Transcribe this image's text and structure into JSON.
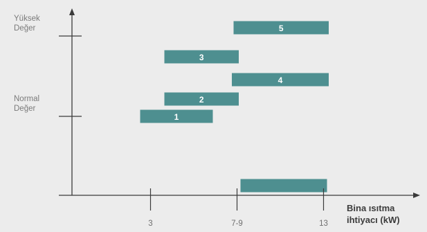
{
  "chart_data": {
    "type": "bar",
    "orientation": "horizontal",
    "xlabel": [
      "Bina ısıtma",
      "ihtiyacı (kW)"
    ],
    "x_ticks": [
      {
        "value": 3,
        "label": "3"
      },
      {
        "value": 8,
        "label": "7-9"
      },
      {
        "value": 13,
        "label": "13"
      }
    ],
    "xlim": [
      -2.3,
      18.3
    ],
    "y_labels": [
      {
        "lines": [
          "Yüksek",
          "Değer"
        ],
        "level": 1
      },
      {
        "lines": [
          "Normal",
          "Değer"
        ],
        "level": 0
      }
    ],
    "grid": false,
    "bar_color": "#4e8f90",
    "axis_color": "#3a3a3a",
    "bars": [
      {
        "label": "5",
        "x_start": 7.8,
        "x_end": 13.3,
        "row": "5"
      },
      {
        "label": "3",
        "x_start": 3.8,
        "x_end": 8.1,
        "row": "3"
      },
      {
        "label": "4",
        "x_start": 7.7,
        "x_end": 13.3,
        "row": "4"
      },
      {
        "label": "2",
        "x_start": 3.8,
        "x_end": 8.1,
        "row": "2"
      },
      {
        "label": "1",
        "x_start": 2.4,
        "x_end": 6.6,
        "row": "1"
      },
      {
        "label": "",
        "x_start": 8.2,
        "x_end": 13.2,
        "row": "base"
      }
    ]
  }
}
